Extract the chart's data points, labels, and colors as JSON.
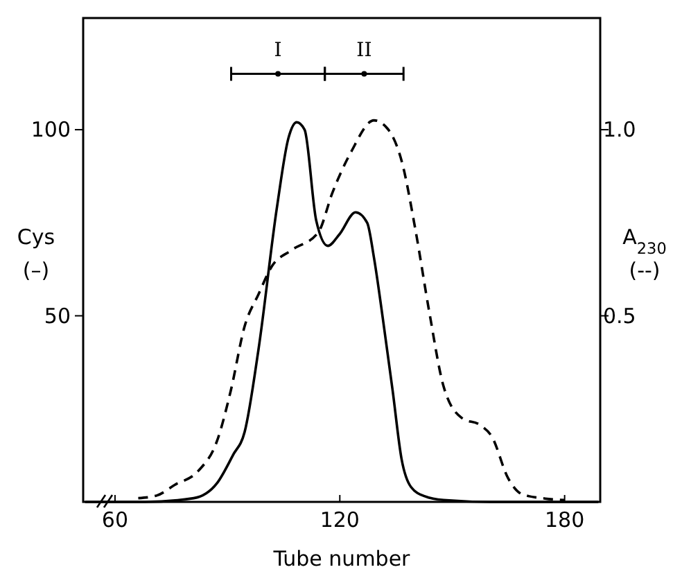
{
  "chart_data": {
    "type": "line",
    "xlabel": "Tube number",
    "ylabel": "Cys (–)",
    "y2label": "A$_{230}$ (--)",
    "xlim": [
      51.5,
      189.5
    ],
    "xticks": [
      60,
      120,
      180
    ],
    "ylim": [
      0,
      130
    ],
    "yticks": [
      50,
      100
    ],
    "y2lim": [
      0,
      1.3
    ],
    "y2ticks": [
      0.5,
      {
        "value": 1,
        "label": "1.0"
      }
    ],
    "grid": false,
    "marker": "none",
    "series": [
      {
        "color": "#000000",
        "line_style": "solid",
        "x": [
          52,
          68,
          81,
          87.2,
          91.5,
          94.6,
          98.3,
          103.2,
          106.3,
          108.5,
          110.6,
          113.7,
          116.8,
          119.9,
          124.2,
          127.3,
          129.1,
          131.6,
          134.1,
          136.5,
          139,
          142.7,
          147.7,
          160,
          189
        ],
        "values": [
          0,
          0,
          1,
          5,
          12.6,
          18.8,
          41,
          79,
          97.8,
          102,
          100,
          75.6,
          68.8,
          71.9,
          77.8,
          75,
          65.7,
          48.4,
          29.9,
          11.4,
          4,
          1.5,
          0.5,
          0,
          0
        ]
      },
      {
        "color": "#000000",
        "line_style": "dashed",
        "axis": "y2",
        "x": [
          66.2,
          71.1,
          76,
          82.2,
          87.2,
          90.9,
          94.6,
          98.3,
          102,
          106.9,
          114.3,
          118,
          123,
          129.1,
          132.8,
          136.5,
          140.2,
          143.9,
          147.7,
          152.6,
          157.5,
          160.6,
          164.9,
          168.6,
          174.8,
          180
        ],
        "values": [
          0.01,
          0.017,
          0.046,
          0.083,
          0.163,
          0.299,
          0.472,
          0.558,
          0.635,
          0.675,
          0.725,
          0.83,
          0.94,
          1.025,
          1.002,
          0.916,
          0.73,
          0.509,
          0.31,
          0.225,
          0.206,
          0.175,
          0.064,
          0.021,
          0.009,
          0.005
        ]
      },
      {
        "type": "scatter",
        "color": "#000000",
        "marker": "circle",
        "x": [
          103.5,
          126.5
        ],
        "values": [
          115,
          115
        ],
        "xerrors": [
          [
            91,
            116
          ],
          [
            116,
            137
          ]
        ],
        "value_labels": [
          "I",
          "II"
        ]
      }
    ]
  }
}
